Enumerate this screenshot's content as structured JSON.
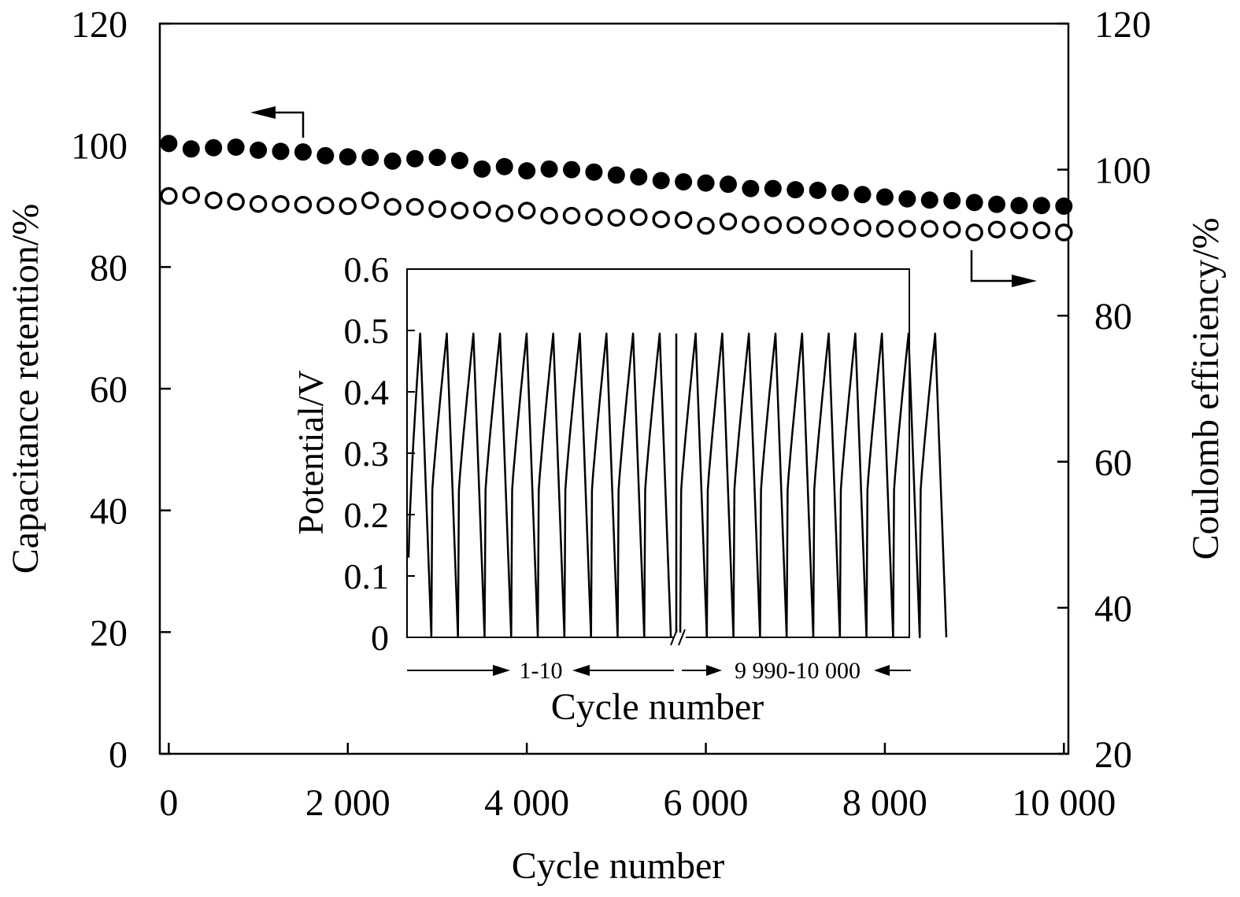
{
  "chart_data": [
    {
      "type": "scatter",
      "xlabel": "Cycle number",
      "ylabel_left": "Capacitance retention/%",
      "ylabel_right": "Coulomb efficiency/%",
      "xlim": [
        -100,
        10050
      ],
      "ylim_left": [
        0,
        120
      ],
      "ylim_right": [
        20,
        120
      ],
      "x_ticks": [
        0,
        2000,
        4000,
        6000,
        8000,
        10000
      ],
      "x_tick_labels": [
        "0",
        "2 000",
        "4 000",
        "6 000",
        "8 000",
        "10 000"
      ],
      "y_left_ticks": [
        0,
        20,
        40,
        60,
        80,
        100,
        120
      ],
      "y_left_tick_labels": [
        "0",
        "20",
        "40",
        "60",
        "80",
        "100",
        "120"
      ],
      "y_right_ticks": [
        20,
        40,
        60,
        80,
        100,
        120
      ],
      "y_right_tick_labels": [
        "20",
        "40",
        "60",
        "80",
        "100",
        "120"
      ],
      "x": [
        0,
        250,
        500,
        750,
        1000,
        1250,
        1500,
        1750,
        2000,
        2250,
        2500,
        2750,
        3000,
        3250,
        3500,
        3750,
        4000,
        4250,
        4500,
        4750,
        5000,
        5250,
        5500,
        5750,
        6000,
        6250,
        6500,
        6750,
        7000,
        7250,
        7500,
        7750,
        8000,
        8250,
        8500,
        8750,
        9000,
        9250,
        9500,
        9750,
        10000
      ],
      "series": [
        {
          "name": "Capacitance retention",
          "axis": "left",
          "marker": "filled-circle",
          "values": [
            100.3,
            99.4,
            99.6,
            99.7,
            99.2,
            99.0,
            98.9,
            98.3,
            98.1,
            98.0,
            97.4,
            97.8,
            98.0,
            97.5,
            96.1,
            96.5,
            95.8,
            96.1,
            96.0,
            95.6,
            95.1,
            94.8,
            94.2,
            94.0,
            93.8,
            93.6,
            92.9,
            92.9,
            92.7,
            92.6,
            92.2,
            91.9,
            91.5,
            91.2,
            91.0,
            90.9,
            90.6,
            90.3,
            90.1,
            90.1,
            90.0
          ]
        },
        {
          "name": "Coulomb efficiency",
          "axis": "right",
          "marker": "open-circle",
          "values": [
            96.4,
            96.5,
            95.8,
            95.6,
            95.3,
            95.3,
            95.2,
            95.1,
            95.0,
            95.8,
            94.9,
            94.9,
            94.6,
            94.4,
            94.5,
            94.0,
            94.4,
            93.7,
            93.7,
            93.5,
            93.4,
            93.5,
            93.2,
            93.1,
            92.3,
            92.9,
            92.5,
            92.4,
            92.4,
            92.3,
            92.2,
            92.0,
            91.9,
            91.9,
            91.9,
            91.8,
            91.4,
            91.8,
            91.7,
            91.7,
            91.4
          ]
        }
      ],
      "arrows": [
        {
          "series": "Capacitance retention",
          "points_to": "left"
        },
        {
          "series": "Coulomb efficiency",
          "points_to": "right"
        }
      ]
    },
    {
      "type": "line",
      "inset": true,
      "xlabel": "Cycle number",
      "ylabel": "Potential/V",
      "ylim": [
        0,
        0.6
      ],
      "y_ticks": [
        0,
        0.1,
        0.2,
        0.3,
        0.4,
        0.5,
        0.6
      ],
      "y_tick_labels": [
        "0",
        "0.1",
        "0.2",
        "0.3",
        "0.4",
        "0.5",
        "0.6"
      ],
      "segments": [
        {
          "label": "1-10",
          "cycles": 10
        },
        {
          "label": "9 990-10 000",
          "cycles": 10
        }
      ],
      "cycles_per_segment": 10,
      "v_min": 0,
      "v_max": 0.495,
      "v_start": 0.13,
      "broken_axis": true
    }
  ]
}
